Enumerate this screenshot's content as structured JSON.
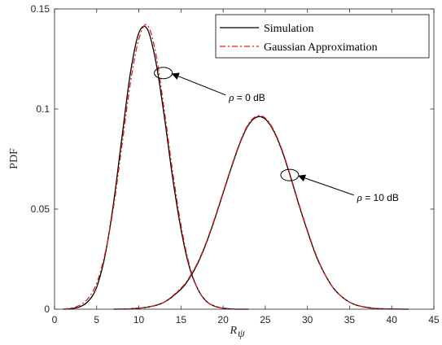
{
  "chart_data": {
    "type": "line",
    "title": "",
    "xlabel": "R",
    "xlabel_sub": "ψ",
    "ylabel": "PDF",
    "xlim": [
      0,
      45
    ],
    "ylim": [
      0,
      0.15
    ],
    "xticks": [
      0,
      5,
      10,
      15,
      20,
      25,
      30,
      35,
      40,
      45
    ],
    "yticks": [
      0,
      0.05,
      0.1,
      0.15
    ],
    "xtick_labels": [
      "0",
      "5",
      "10",
      "15",
      "20",
      "25",
      "30",
      "35",
      "40",
      "45"
    ],
    "ytick_labels": [
      "0",
      "0.05",
      "0.1",
      "0.15"
    ],
    "grid": false,
    "legend": {
      "position": "top-right",
      "entries": [
        {
          "label": "Simulation",
          "color": "#000000",
          "style": "solid"
        },
        {
          "label": "Gaussian Approximation",
          "color": "#e8161b",
          "style": "dashdot"
        }
      ]
    },
    "series": [
      {
        "name": "Simulation",
        "group": "ρ = 0 dB",
        "color": "#000000",
        "style": "solid",
        "x": [
          1,
          2,
          3,
          4,
          5,
          6,
          7,
          8,
          9,
          10,
          11,
          12,
          13,
          14,
          15,
          16,
          17,
          18,
          19,
          20,
          21,
          22,
          23
        ],
        "y": [
          0,
          0.0003,
          0.0012,
          0.004,
          0.011,
          0.027,
          0.053,
          0.086,
          0.118,
          0.138,
          0.14,
          0.124,
          0.097,
          0.066,
          0.04,
          0.021,
          0.01,
          0.004,
          0.0015,
          0.0005,
          0.0001,
          0,
          0
        ]
      },
      {
        "name": "Gaussian Approximation",
        "group": "ρ = 0 dB",
        "color": "#e8161b",
        "style": "dashdot",
        "x": [
          1,
          2,
          3,
          4,
          5,
          6,
          7,
          8,
          9,
          10,
          11,
          12,
          13,
          14,
          15,
          16,
          17,
          18,
          19,
          20,
          21,
          22,
          23
        ],
        "y": [
          0,
          0.0006,
          0.002,
          0.0055,
          0.013,
          0.028,
          0.051,
          0.082,
          0.113,
          0.135,
          0.142,
          0.128,
          0.1,
          0.069,
          0.042,
          0.022,
          0.01,
          0.004,
          0.0015,
          0.0005,
          0.0001,
          0,
          0
        ]
      },
      {
        "name": "Simulation",
        "group": "ρ = 10 dB",
        "color": "#000000",
        "style": "solid",
        "x": [
          7,
          9,
          11,
          13,
          15,
          16,
          17,
          18,
          19,
          20,
          21,
          22,
          23,
          24,
          25,
          26,
          27,
          28,
          29,
          30,
          31,
          32,
          33,
          34,
          35,
          36,
          38,
          40,
          42
        ],
        "y": [
          0,
          0.0002,
          0.001,
          0.0035,
          0.01,
          0.0155,
          0.023,
          0.033,
          0.045,
          0.058,
          0.071,
          0.083,
          0.092,
          0.096,
          0.095,
          0.089,
          0.079,
          0.066,
          0.052,
          0.039,
          0.027,
          0.018,
          0.011,
          0.0065,
          0.0035,
          0.0018,
          0.0004,
          0.0001,
          0
        ]
      },
      {
        "name": "Gaussian Approximation",
        "group": "ρ = 10 dB",
        "color": "#e8161b",
        "style": "dashdot",
        "x": [
          7,
          9,
          11,
          13,
          15,
          16,
          17,
          18,
          19,
          20,
          21,
          22,
          23,
          24,
          25,
          26,
          27,
          28,
          29,
          30,
          31,
          32,
          33,
          34,
          35,
          36,
          38,
          40,
          42
        ],
        "y": [
          0,
          0.0002,
          0.001,
          0.0035,
          0.0105,
          0.016,
          0.0235,
          0.0335,
          0.0455,
          0.0585,
          0.0715,
          0.0835,
          0.0925,
          0.0965,
          0.0955,
          0.0895,
          0.0795,
          0.0665,
          0.0525,
          0.0395,
          0.0275,
          0.018,
          0.011,
          0.0065,
          0.0035,
          0.0018,
          0.0004,
          0.0001,
          0
        ]
      }
    ],
    "annotations": [
      {
        "symbol": "ρ",
        "text": " = 0 dB",
        "ellipse_center": [
          12.9,
          0.118
        ],
        "arrow_from": [
          20.3,
          0.107
        ]
      },
      {
        "symbol": "ρ",
        "text": " = 10 dB",
        "ellipse_center": [
          27.9,
          0.067
        ],
        "arrow_from": [
          35.5,
          0.057
        ]
      }
    ]
  }
}
